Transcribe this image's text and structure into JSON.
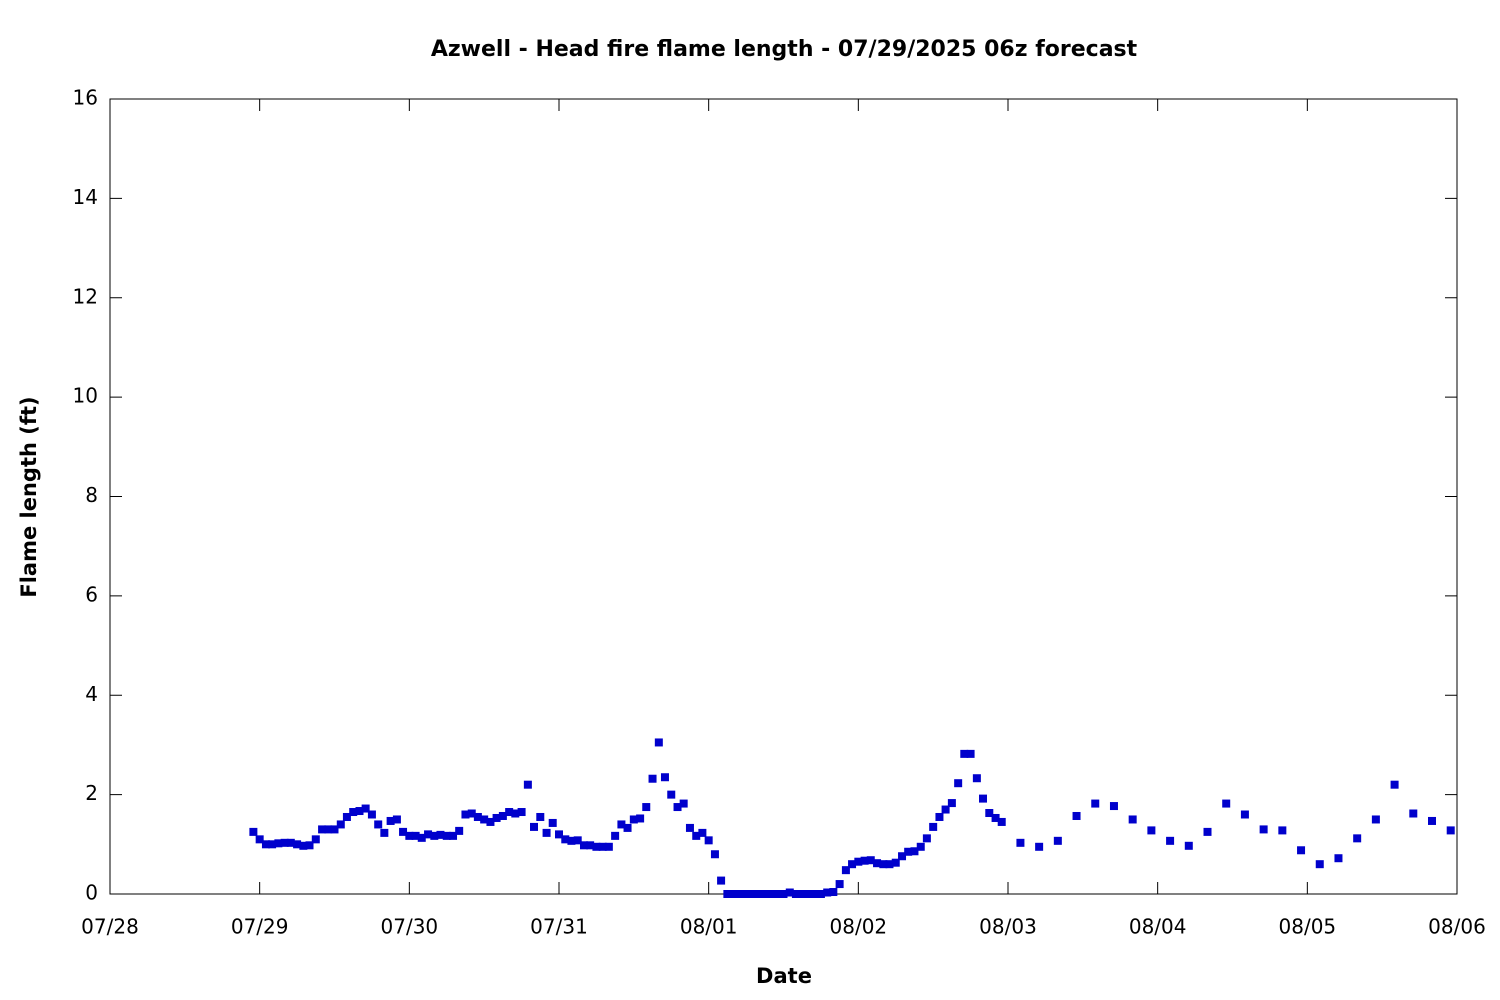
{
  "chart_data": {
    "type": "scatter",
    "title": "Azwell - Head fire flame length - 07/29/2025 06z forecast",
    "x_label": "Date",
    "y_label": "Flame length (ft)",
    "color": "#0000cc",
    "x": [
      209.958,
      210,
      210.042,
      210.083,
      210.125,
      210.167,
      210.208,
      210.25,
      210.292,
      210.333,
      210.375,
      210.417,
      210.458,
      210.5,
      210.542,
      210.583,
      210.625,
      210.667,
      210.708,
      210.75,
      210.792,
      210.833,
      210.875,
      210.917,
      210.958,
      211,
      211.042,
      211.083,
      211.125,
      211.167,
      211.208,
      211.25,
      211.292,
      211.333,
      211.375,
      211.417,
      211.458,
      211.5,
      211.542,
      211.583,
      211.625,
      211.667,
      211.708,
      211.75,
      211.792,
      211.833,
      211.875,
      211.917,
      211.958,
      212,
      212.042,
      212.083,
      212.125,
      212.167,
      212.208,
      212.25,
      212.292,
      212.333,
      212.375,
      212.417,
      212.458,
      212.5,
      212.542,
      212.583,
      212.625,
      212.667,
      212.708,
      212.75,
      212.792,
      212.833,
      212.875,
      212.917,
      212.958,
      213,
      213.042,
      213.083,
      213.125,
      213.167,
      213.208,
      213.25,
      213.292,
      213.333,
      213.375,
      213.417,
      213.458,
      213.5,
      213.542,
      213.583,
      213.625,
      213.667,
      213.708,
      213.75,
      213.792,
      213.833,
      213.875,
      213.917,
      213.958,
      214,
      214.042,
      214.083,
      214.125,
      214.167,
      214.208,
      214.25,
      214.292,
      214.333,
      214.375,
      214.417,
      214.458,
      214.5,
      214.542,
      214.583,
      214.625,
      214.667,
      214.708,
      214.75,
      214.792,
      214.833,
      214.875,
      214.917,
      214.958,
      215.083,
      215.208,
      215.333,
      215.458,
      215.583,
      215.708,
      215.833,
      215.958,
      216.083,
      216.208,
      216.333,
      216.458,
      216.583,
      216.708,
      216.833,
      216.958,
      217.083,
      217.208,
      217.333,
      217.458,
      217.583,
      217.708,
      217.833,
      217.958
    ],
    "values": [
      1.25,
      1.1,
      1.0,
      1.0,
      1.02,
      1.03,
      1.03,
      1.0,
      0.97,
      0.98,
      1.1,
      1.3,
      1.3,
      1.3,
      1.4,
      1.55,
      1.65,
      1.67,
      1.72,
      1.6,
      1.4,
      1.23,
      1.47,
      1.5,
      1.25,
      1.17,
      1.17,
      1.13,
      1.2,
      1.17,
      1.19,
      1.17,
      1.17,
      1.27,
      1.6,
      1.62,
      1.55,
      1.5,
      1.45,
      1.53,
      1.57,
      1.65,
      1.62,
      1.65,
      2.2,
      1.35,
      1.55,
      1.23,
      1.43,
      1.2,
      1.1,
      1.07,
      1.08,
      0.98,
      0.98,
      0.95,
      0.95,
      0.95,
      1.17,
      1.4,
      1.33,
      1.5,
      1.52,
      1.75,
      2.32,
      3.05,
      2.35,
      2.0,
      1.75,
      1.82,
      1.33,
      1.17,
      1.23,
      1.08,
      0.8,
      0.27,
      0,
      0,
      0,
      0,
      0,
      0,
      0,
      0,
      0,
      0,
      0.03,
      0,
      0,
      0,
      0,
      0,
      0.03,
      0.04,
      0.2,
      0.48,
      0.6,
      0.65,
      0.67,
      0.68,
      0.62,
      0.6,
      0.6,
      0.63,
      0.76,
      0.85,
      0.86,
      0.95,
      1.12,
      1.35,
      1.55,
      1.7,
      1.83,
      2.23,
      2.82,
      2.82,
      2.33,
      1.92,
      1.63,
      1.53,
      1.45,
      1.03,
      0.95,
      1.07,
      1.57,
      1.82,
      1.77,
      1.5,
      1.28,
      1.07,
      0.97,
      1.25,
      1.82,
      1.6,
      1.3,
      1.28,
      0.88,
      0.6,
      0.72,
      1.12,
      1.5,
      2.2,
      1.62,
      1.47,
      1.28
    ],
    "xlim": [
      209,
      218
    ],
    "xticks": [
      {
        "value": 209,
        "label": "07/28"
      },
      {
        "value": 210,
        "label": "07/29"
      },
      {
        "value": 211,
        "label": "07/30"
      },
      {
        "value": 212,
        "label": "07/31"
      },
      {
        "value": 213,
        "label": "08/01"
      },
      {
        "value": 214,
        "label": "08/02"
      },
      {
        "value": 215,
        "label": "08/03"
      },
      {
        "value": 216,
        "label": "08/04"
      },
      {
        "value": 217,
        "label": "08/05"
      },
      {
        "value": 218,
        "label": "08/06"
      }
    ],
    "ylim": [
      0,
      16
    ],
    "yticks": [
      0,
      2,
      4,
      6,
      8,
      10,
      12,
      14,
      16
    ],
    "grid": false
  }
}
